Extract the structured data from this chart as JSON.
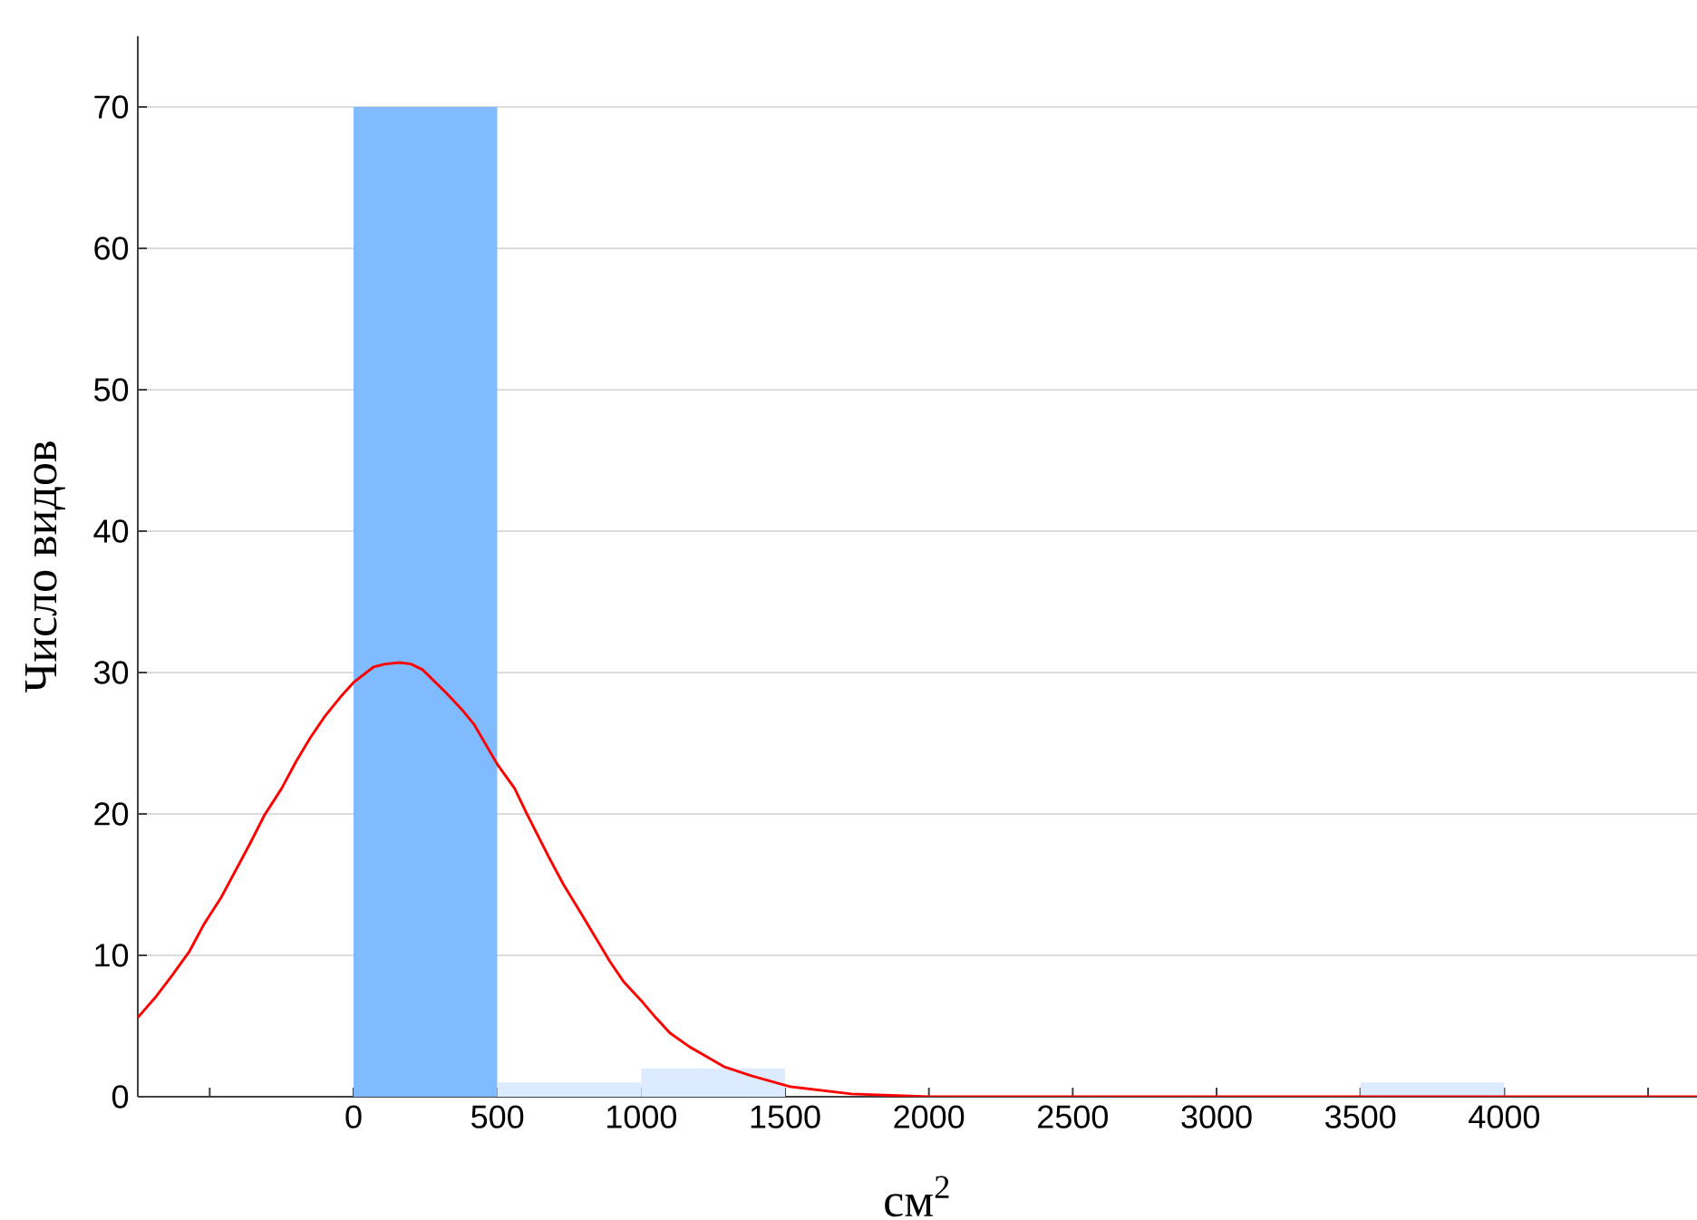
{
  "chart_data": {
    "type": "histogram",
    "xlabel": "см$^{2}$",
    "ylabel": "Число видов",
    "series": [
      {
        "colors": [
          "#80bbff",
          "#dcebff",
          "#dcebff",
          "#dcebff",
          "#dcebff",
          "#dcebff",
          "#dcebff",
          "#dcebff"
        ],
        "bins": [
          0,
          500,
          1000,
          1500,
          2000,
          2500,
          3000,
          3500,
          4000
        ],
        "values": [
          70,
          1,
          2,
          0,
          0,
          0,
          0,
          1
        ]
      },
      {
        "type": "line",
        "color": "#ff0000",
        "x": [
          -750,
          -690,
          -630,
          -570,
          -520,
          -460,
          -410,
          -360,
          -310,
          -250,
          -200,
          -150,
          -100,
          -40,
          0,
          70,
          110,
          160,
          200,
          240,
          320,
          380,
          420,
          500,
          560,
          600,
          680,
          730,
          790,
          840,
          890,
          940,
          1000,
          1050,
          1100,
          1170,
          1230,
          1290,
          1380,
          1520,
          1730,
          2000,
          4670
        ],
        "values": [
          5.6,
          7.0,
          8.6,
          10.3,
          12.2,
          14.1,
          16.0,
          17.9,
          19.9,
          21.8,
          23.7,
          25.4,
          26.9,
          28.4,
          29.3,
          30.4,
          30.6,
          30.7,
          30.6,
          30.2,
          28.6,
          27.3,
          26.3,
          23.5,
          21.8,
          20.1,
          16.9,
          15.0,
          13.0,
          11.3,
          9.6,
          8.1,
          6.8,
          5.6,
          4.5,
          3.5,
          2.8,
          2.1,
          1.5,
          0.7,
          0.2,
          0,
          0
        ]
      }
    ],
    "xlim": [
      -750,
      4670
    ],
    "ylim": [
      0,
      75
    ],
    "xticks": [
      {
        "value": -500,
        "label": null
      },
      0,
      500,
      1000,
      1500,
      2000,
      2500,
      3000,
      3500,
      4000,
      {
        "value": 4500,
        "label": null
      }
    ],
    "yticks": [
      0,
      10,
      20,
      30,
      40,
      50,
      60,
      70
    ],
    "grid": "y"
  }
}
